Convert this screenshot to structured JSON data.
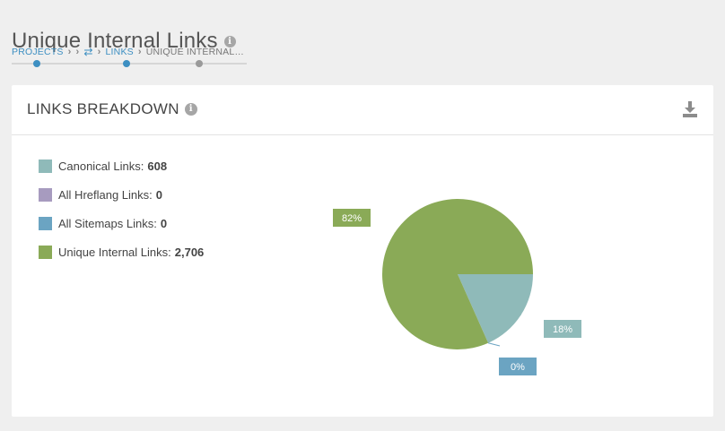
{
  "page": {
    "title": "Unique Internal Links"
  },
  "breadcrumb": {
    "items": [
      "PROJECTS",
      "LINKS",
      "UNIQUE INTERNAL…"
    ]
  },
  "card": {
    "title": "LINKS BREAKDOWN"
  },
  "legend": [
    {
      "label": "Canonical Links:",
      "value": "608",
      "color": "#8fbab9"
    },
    {
      "label": "All Hreflang Links:",
      "value": "0",
      "color": "#a79bbf"
    },
    {
      "label": "All Sitemaps Links:",
      "value": "0",
      "color": "#6ba4c2"
    },
    {
      "label": "Unique Internal Links:",
      "value": "2,706",
      "color": "#8aaa57"
    }
  ],
  "chart_data": {
    "type": "pie",
    "slices": [
      {
        "name": "Canonical Links",
        "value": 608,
        "label": "18%",
        "color": "#8fbab9"
      },
      {
        "name": "All Hreflang Links",
        "value": 0,
        "label": "",
        "color": "#a79bbf"
      },
      {
        "name": "All Sitemaps Links",
        "value": 0,
        "label": "0%",
        "color": "#6ba4c2"
      },
      {
        "name": "Unique Internal Links",
        "value": 2706,
        "label": "82%",
        "color": "#8aaa57"
      }
    ]
  },
  "icons": {
    "info": "info-icon",
    "download": "download-icon",
    "swap": "swap-arrows-icon",
    "chevron": "chevron-right-icon"
  },
  "colors": {
    "accent": "#3d8fc2"
  }
}
